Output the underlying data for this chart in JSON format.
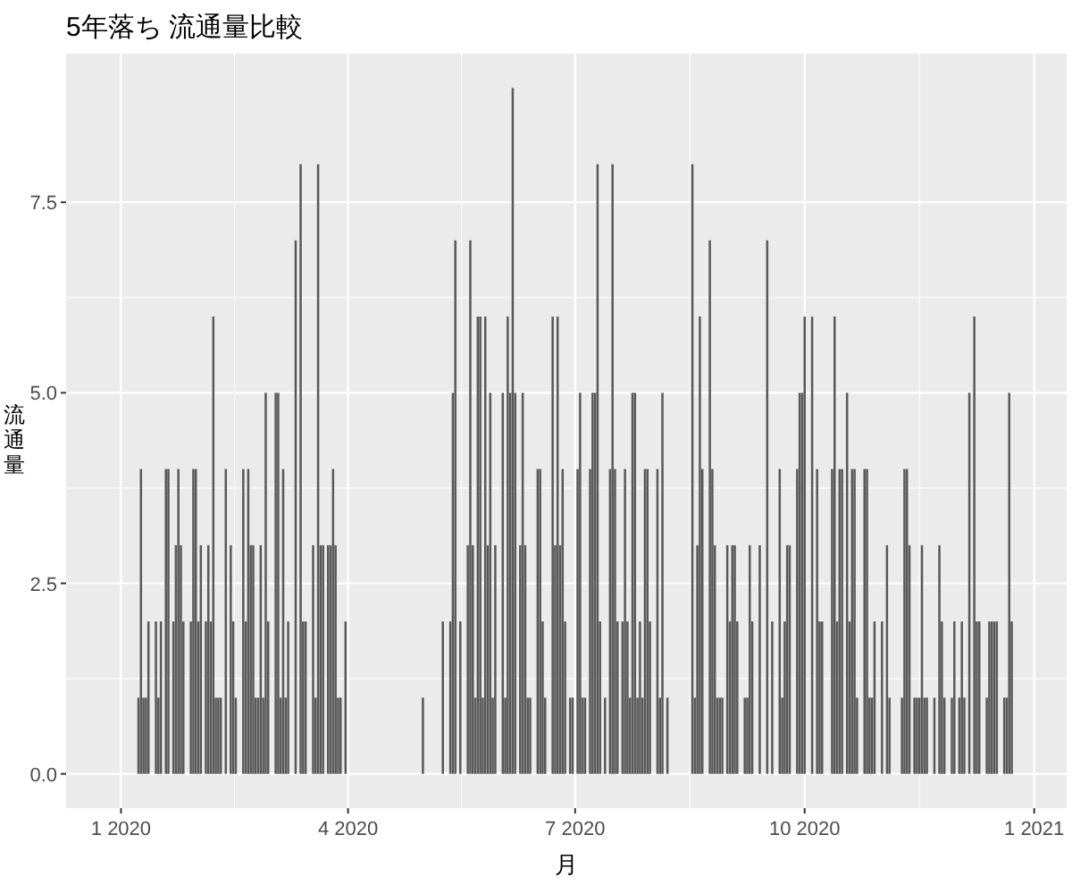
{
  "chart_data": {
    "type": "bar",
    "title": "5年落ち 流通量比較",
    "xlabel": "月",
    "ylabel": "流通量",
    "color": "#595959",
    "grid": true,
    "xlim": [
      "2019-12-10",
      "2021-01-14"
    ],
    "ylim": [
      -0.45,
      9.45
    ],
    "xticks": [
      {
        "value": "2020-01-01",
        "label": "1 2020"
      },
      {
        "value": "2020-04-01",
        "label": "4 2020"
      },
      {
        "value": "2020-07-01",
        "label": "7 2020"
      },
      {
        "value": "2020-10-01",
        "label": "10 2020"
      },
      {
        "value": "2021-01-01",
        "label": "1 2021"
      }
    ],
    "yticks": [
      {
        "value": 0,
        "label": "0.0"
      },
      {
        "value": 2.5,
        "label": "2.5"
      },
      {
        "value": 5,
        "label": "5.0"
      },
      {
        "value": 7.5,
        "label": "7.5"
      }
    ],
    "x": [
      "2020-01-08",
      "2020-01-09",
      "2020-01-10",
      "2020-01-11",
      "2020-01-12",
      "2020-01-15",
      "2020-01-16",
      "2020-01-17",
      "2020-01-19",
      "2020-01-20",
      "2020-01-22",
      "2020-01-23",
      "2020-01-24",
      "2020-01-25",
      "2020-01-26",
      "2020-01-29",
      "2020-01-30",
      "2020-01-31",
      "2020-02-01",
      "2020-02-02",
      "2020-02-04",
      "2020-02-05",
      "2020-02-06",
      "2020-02-07",
      "2020-02-08",
      "2020-02-09",
      "2020-02-10",
      "2020-02-12",
      "2020-02-14",
      "2020-02-15",
      "2020-02-16",
      "2020-02-19",
      "2020-02-20",
      "2020-02-21",
      "2020-02-22",
      "2020-02-23",
      "2020-02-24",
      "2020-02-25",
      "2020-02-26",
      "2020-02-27",
      "2020-02-28",
      "2020-02-29",
      "2020-03-03",
      "2020-03-04",
      "2020-03-05",
      "2020-03-06",
      "2020-03-07",
      "2020-03-08",
      "2020-03-11",
      "2020-03-13",
      "2020-03-14",
      "2020-03-15",
      "2020-03-18",
      "2020-03-19",
      "2020-03-20",
      "2020-03-21",
      "2020-03-22",
      "2020-03-24",
      "2020-03-25",
      "2020-03-26",
      "2020-03-27",
      "2020-03-28",
      "2020-03-29",
      "2020-03-31",
      "2020-05-01",
      "2020-05-09",
      "2020-05-12",
      "2020-05-13",
      "2020-05-14",
      "2020-05-16",
      "2020-05-19",
      "2020-05-20",
      "2020-05-21",
      "2020-05-22",
      "2020-05-23",
      "2020-05-24",
      "2020-05-25",
      "2020-05-26",
      "2020-05-27",
      "2020-05-28",
      "2020-05-29",
      "2020-05-30",
      "2020-06-02",
      "2020-06-03",
      "2020-06-04",
      "2020-06-05",
      "2020-06-06",
      "2020-06-07",
      "2020-06-09",
      "2020-06-10",
      "2020-06-11",
      "2020-06-12",
      "2020-06-13",
      "2020-06-16",
      "2020-06-17",
      "2020-06-18",
      "2020-06-19",
      "2020-06-22",
      "2020-06-23",
      "2020-06-24",
      "2020-06-25",
      "2020-06-26",
      "2020-06-27",
      "2020-06-29",
      "2020-06-30",
      "2020-07-02",
      "2020-07-03",
      "2020-07-04",
      "2020-07-05",
      "2020-07-07",
      "2020-07-08",
      "2020-07-09",
      "2020-07-10",
      "2020-07-11",
      "2020-07-13",
      "2020-07-15",
      "2020-07-16",
      "2020-07-17",
      "2020-07-18",
      "2020-07-20",
      "2020-07-21",
      "2020-07-22",
      "2020-07-23",
      "2020-07-24",
      "2020-07-25",
      "2020-07-26",
      "2020-07-27",
      "2020-07-28",
      "2020-07-29",
      "2020-07-30",
      "2020-07-31",
      "2020-08-03",
      "2020-08-04",
      "2020-08-05",
      "2020-08-07",
      "2020-08-17",
      "2020-08-18",
      "2020-08-19",
      "2020-08-20",
      "2020-08-21",
      "2020-08-24",
      "2020-08-25",
      "2020-08-26",
      "2020-08-27",
      "2020-08-28",
      "2020-08-29",
      "2020-08-31",
      "2020-09-01",
      "2020-09-02",
      "2020-09-03",
      "2020-09-04",
      "2020-09-07",
      "2020-09-08",
      "2020-09-09",
      "2020-09-10",
      "2020-09-13",
      "2020-09-16",
      "2020-09-18",
      "2020-09-21",
      "2020-09-22",
      "2020-09-23",
      "2020-09-24",
      "2020-09-25",
      "2020-09-28",
      "2020-09-29",
      "2020-09-30",
      "2020-10-01",
      "2020-10-04",
      "2020-10-06",
      "2020-10-07",
      "2020-10-08",
      "2020-10-12",
      "2020-10-13",
      "2020-10-14",
      "2020-10-15",
      "2020-10-16",
      "2020-10-18",
      "2020-10-19",
      "2020-10-20",
      "2020-10-21",
      "2020-10-22",
      "2020-10-25",
      "2020-10-26",
      "2020-10-27",
      "2020-10-28",
      "2020-10-29",
      "2020-11-01",
      "2020-11-03",
      "2020-11-04",
      "2020-11-09",
      "2020-11-10",
      "2020-11-11",
      "2020-11-12",
      "2020-11-14",
      "2020-11-15",
      "2020-11-16",
      "2020-11-17",
      "2020-11-18",
      "2020-11-19",
      "2020-11-22",
      "2020-11-24",
      "2020-11-25",
      "2020-11-26",
      "2020-11-29",
      "2020-11-30",
      "2020-12-02",
      "2020-12-03",
      "2020-12-04",
      "2020-12-06",
      "2020-12-08",
      "2020-12-09",
      "2020-12-10",
      "2020-12-13",
      "2020-12-14",
      "2020-12-15",
      "2020-12-16",
      "2020-12-17",
      "2020-12-20",
      "2020-12-21",
      "2020-12-22",
      "2020-12-23"
    ],
    "values": [
      1,
      4,
      1,
      1,
      2,
      2,
      1,
      2,
      4,
      4,
      2,
      3,
      4,
      3,
      2,
      2,
      4,
      4,
      2,
      3,
      2,
      3,
      2,
      6,
      1,
      1,
      1,
      4,
      3,
      2,
      1,
      4,
      2,
      4,
      3,
      3,
      1,
      1,
      3,
      1,
      5,
      2,
      5,
      5,
      1,
      4,
      1,
      2,
      7,
      8,
      2,
      2,
      3,
      1,
      8,
      3,
      3,
      3,
      3,
      4,
      3,
      1,
      1,
      2,
      1,
      2,
      2,
      5,
      7,
      2,
      3,
      7,
      3,
      1,
      6,
      6,
      1,
      6,
      3,
      5,
      1,
      3,
      5,
      1,
      6,
      5,
      9,
      5,
      3,
      5,
      3,
      1,
      1,
      4,
      4,
      2,
      1,
      6,
      3,
      6,
      3,
      4,
      2,
      1,
      1,
      4,
      5,
      1,
      1,
      4,
      5,
      5,
      8,
      2,
      1,
      4,
      8,
      4,
      2,
      2,
      4,
      2,
      1,
      5,
      5,
      1,
      2,
      1,
      4,
      4,
      2,
      4,
      1,
      5,
      1,
      8,
      1,
      3,
      6,
      4,
      7,
      4,
      3,
      1,
      1,
      1,
      3,
      2,
      3,
      3,
      2,
      1,
      1,
      3,
      2,
      3,
      7,
      2,
      4,
      1,
      2,
      3,
      3,
      4,
      5,
      5,
      6,
      6,
      4,
      2,
      2,
      4,
      6,
      2,
      4,
      4,
      5,
      2,
      4,
      4,
      1,
      4,
      4,
      1,
      1,
      2,
      2,
      3,
      1,
      1,
      4,
      4,
      3,
      1,
      1,
      1,
      3,
      1,
      1,
      1,
      3,
      2,
      1,
      1,
      2,
      1,
      2,
      1,
      5,
      6,
      2,
      2,
      1,
      2,
      2,
      2,
      2,
      1,
      1,
      5,
      2
    ]
  }
}
